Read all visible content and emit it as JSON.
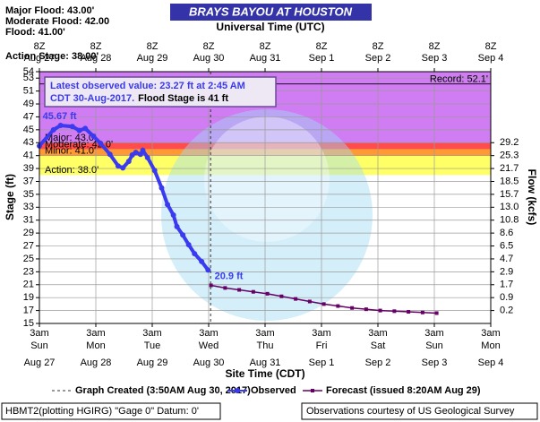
{
  "chart_data": {
    "type": "line",
    "title": "BRAYS BAYOU AT HOUSTON",
    "header_lines": [
      "Major Flood: 43.00'",
      "Moderate Flood: 42.00",
      "Flood: 41.00'",
      "Action Stage: 38.00'"
    ],
    "top_axis_label": "Universal Time (UTC)",
    "x_label": "Site Time (CDT)",
    "y_label": "Stage (ft)",
    "y2_label": "Flow (kcfs)",
    "xlim": [
      0,
      192
    ],
    "xticks": [
      {
        "value": 0,
        "label": "3am"
      },
      {
        "value": 24,
        "label": "3am"
      },
      {
        "value": 48,
        "label": "3am"
      },
      {
        "value": 72,
        "label": "3am"
      },
      {
        "value": 96,
        "label": "3am"
      },
      {
        "value": 120,
        "label": "3am"
      },
      {
        "value": 144,
        "label": "3am"
      },
      {
        "value": 168,
        "label": "3am"
      },
      {
        "value": 192,
        "label": "3am"
      }
    ],
    "x_tick_days": [
      "Sun",
      "Mon",
      "Tue",
      "Wed",
      "Thu",
      "Fri",
      "Sat",
      "Sun",
      "Mon"
    ],
    "x_tick_dates": [
      "Aug 27",
      "Aug 28",
      "Aug 29",
      "Aug 30",
      "Aug 31",
      "Sep 1",
      "Sep 2",
      "Sep 3",
      "Sep 4"
    ],
    "top_ticks": [
      "8Z",
      "8Z",
      "8Z",
      "8Z",
      "8Z",
      "8Z",
      "8Z",
      "8Z",
      "8Z"
    ],
    "top_tick_dates": [
      "Aug 27",
      "Aug 28",
      "Aug 29",
      "Aug 30",
      "Aug 31",
      "Sep 1",
      "Sep 2",
      "Sep 3",
      "Sep 4"
    ],
    "ylim": [
      15,
      54
    ],
    "yticks": [
      15,
      17,
      19,
      21,
      23,
      25,
      27,
      29,
      31,
      33,
      35,
      37,
      39,
      41,
      43,
      45,
      47,
      49,
      51,
      53,
      54
    ],
    "flow_ticks": [
      {
        "stage": 43,
        "label": "29.2"
      },
      {
        "stage": 41,
        "label": "25.3"
      },
      {
        "stage": 39,
        "label": "21.7"
      },
      {
        "stage": 37,
        "label": "18.5"
      },
      {
        "stage": 35,
        "label": "15.7"
      },
      {
        "stage": 33,
        "label": "13.0"
      },
      {
        "stage": 31,
        "label": "10.8"
      },
      {
        "stage": 29,
        "label": "8.6"
      },
      {
        "stage": 27,
        "label": "6.5"
      },
      {
        "stage": 25,
        "label": "4.7"
      },
      {
        "stage": 23,
        "label": "2.9"
      },
      {
        "stage": 21,
        "label": "1.7"
      },
      {
        "stage": 19,
        "label": "0.9"
      },
      {
        "stage": 17,
        "label": "0.2"
      }
    ],
    "flood_categories": [
      {
        "label": "Major: 43.0'",
        "value": 43,
        "color": "#d07cf2"
      },
      {
        "label": "Moderate: 42.0'",
        "value": 42,
        "color": "#ff4d4d"
      },
      {
        "label": "Minor: 41.0'",
        "value": 41,
        "color": "#ff9a33"
      },
      {
        "label": "Action: 38.0'",
        "value": 38,
        "color": "#ffff66"
      }
    ],
    "record": {
      "label": "Record: 52.1'",
      "value": 52.1
    },
    "series": [
      {
        "name": "Observed",
        "color": "#3a3af0",
        "x": [
          0,
          6,
          9,
          14,
          17,
          19.5,
          23,
          26,
          30,
          33.5,
          35.5,
          38,
          39.5,
          41,
          43,
          44,
          46,
          49,
          52,
          54.5,
          57,
          58.5,
          61,
          63.5,
          66,
          69,
          71.75
        ],
        "values": [
          42.5,
          45.0,
          45.67,
          45.5,
          44.9,
          45.2,
          44.0,
          42.9,
          41.2,
          39.4,
          39.1,
          40.1,
          41.1,
          41.5,
          41.2,
          41.8,
          40.7,
          38.7,
          36.0,
          33.4,
          31.8,
          30.0,
          28.7,
          27.2,
          25.8,
          24.6,
          23.27
        ]
      },
      {
        "name": "Forecast (issued 8:20AM Aug 29)",
        "color": "#660066",
        "x": [
          73,
          79,
          85,
          91,
          97,
          103,
          109,
          115,
          121,
          127,
          133,
          139,
          145,
          151,
          157,
          163,
          169
        ],
        "values": [
          20.9,
          20.5,
          20.2,
          19.9,
          19.6,
          19.2,
          18.8,
          18.4,
          18.0,
          17.7,
          17.4,
          17.2,
          17.0,
          16.9,
          16.8,
          16.7,
          16.6
        ]
      }
    ],
    "annotations": [
      {
        "text": "45.67 ft",
        "x": 9,
        "y": 45.67,
        "color": "#3a3af0"
      },
      {
        "text": "20.9 ft",
        "x": 73,
        "y": 20.9,
        "color": "#3a3af0"
      }
    ],
    "graph_created": {
      "name": "Graph Created (3:50AM Aug 30, 2017)",
      "x": 72.83
    },
    "latest_box": {
      "line1": "Latest observed value: 23.27 ft at 2:45 AM",
      "line2": "CDT 30-Aug-2017.",
      "line3": "Flood Stage is 41 ft"
    },
    "footer": {
      "left": "HBMT2(plotting HGIRG) \"Gage 0\" Datum: 0'",
      "right": "Observations courtesy of US Geological Survey"
    }
  }
}
